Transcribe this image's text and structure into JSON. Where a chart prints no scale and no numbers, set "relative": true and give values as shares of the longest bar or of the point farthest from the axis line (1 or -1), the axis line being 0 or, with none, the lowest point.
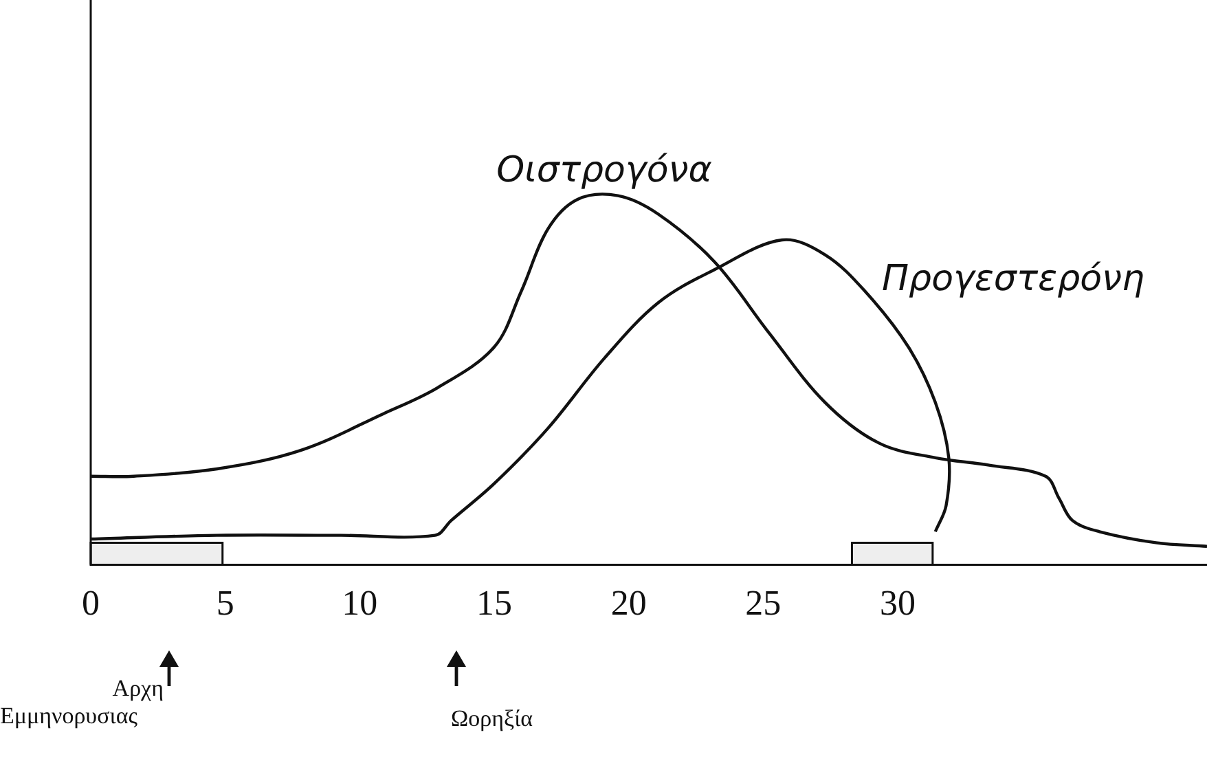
{
  "chart_data": {
    "type": "line",
    "relative": true,
    "legend": false,
    "grid": false,
    "marker": "none",
    "line_style": "solid",
    "xlim": [
      0,
      41.5
    ],
    "xticks": [
      0,
      5,
      10,
      15,
      20,
      25,
      30
    ],
    "series": [
      {
        "name": "Οιστρογόνα",
        "color": "#111111",
        "x": [
          0,
          1.6,
          4.7,
          7.8,
          10.9,
          12.9,
          15.0,
          16.0,
          17.0,
          18.1,
          19.6,
          21.1,
          23.2,
          25.2,
          27.3,
          29.3,
          31.4,
          33.4,
          35.5,
          36.0,
          36.5,
          37.5,
          39.6,
          41.5
        ],
        "values": [
          0.24,
          0.24,
          0.26,
          0.31,
          0.41,
          0.48,
          0.59,
          0.74,
          0.91,
          0.99,
          1,
          0.95,
          0.82,
          0.63,
          0.44,
          0.33,
          0.29,
          0.27,
          0.24,
          0.18,
          0.12,
          0.09,
          0.06,
          0.05
        ]
      },
      {
        "name": "Προγεστερόνη",
        "color": "#111111",
        "x": [
          0,
          4.7,
          9.3,
          12.8,
          13.4,
          15.0,
          17.0,
          19.1,
          21.1,
          23.2,
          25.7,
          27.3,
          28.8,
          30.4,
          31.4,
          31.9,
          31.8,
          31.4
        ],
        "values": [
          0.07,
          0.08,
          0.08,
          0.08,
          0.12,
          0.22,
          0.37,
          0.56,
          0.71,
          0.8,
          0.88,
          0.84,
          0.74,
          0.59,
          0.44,
          0.29,
          0.16,
          0.09
        ]
      }
    ],
    "bands": [
      {
        "axis": "x",
        "from": 0,
        "to": 4.9,
        "color": "#eeeeee"
      },
      {
        "axis": "x",
        "from": 28.3,
        "to": 31.3,
        "color": "#eeeeee"
      }
    ],
    "annotations": [
      "Αρχη Εμμηνορυσιας",
      "Ωορηξία"
    ]
  }
}
